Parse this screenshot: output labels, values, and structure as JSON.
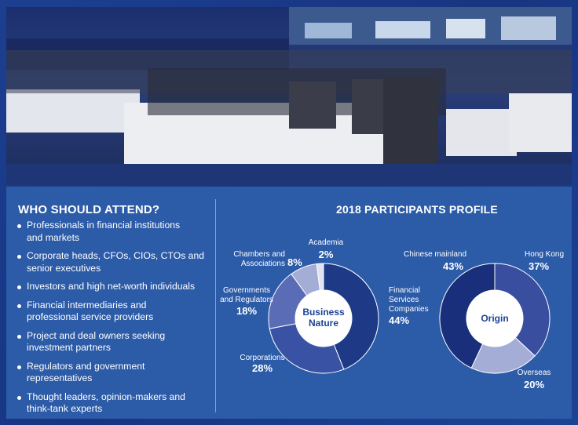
{
  "attend": {
    "title": "WHO SHOULD ATTEND?",
    "items": [
      [
        "Professionals in financial institutions",
        "and markets"
      ],
      [
        "Corporate heads, CFOs, CIOs, CTOs and",
        "senior executives"
      ],
      [
        "Investors and high net-worth individuals"
      ],
      [
        "Financial intermediaries and",
        "professional service providers"
      ],
      [
        "Project and deal owners seeking",
        "investment partners"
      ],
      [
        "Regulators and government",
        "representatives"
      ],
      [
        "Thought leaders, opinion-makers and",
        "think-tank experts"
      ]
    ]
  },
  "profile": {
    "title": "2018 PARTICIPANTS PROFILE",
    "business": {
      "center": [
        "Business",
        "Nature"
      ],
      "segments": [
        {
          "label": [
            "Financial",
            "Services",
            "Companies"
          ],
          "value": 44,
          "display": "44%",
          "color": "#1e3a86"
        },
        {
          "label": [
            "Corporations"
          ],
          "value": 28,
          "display": "28%",
          "color": "#3a52a3"
        },
        {
          "label": [
            "Governments",
            "and Regulators"
          ],
          "value": 18,
          "display": "18%",
          "color": "#5b6cb6"
        },
        {
          "label": [
            "Chambers and",
            "Associations"
          ],
          "value": 8,
          "display": "8%",
          "color": "#a4add6"
        },
        {
          "label": [
            "Academia"
          ],
          "value": 2,
          "display": "2%",
          "color": "#dfe3f1"
        }
      ]
    },
    "origin": {
      "center": [
        "Origin"
      ],
      "segments": [
        {
          "label": [
            "Hong Kong"
          ],
          "value": 37,
          "display": "37%",
          "color": "#3a4ea0"
        },
        {
          "label": [
            "Overseas"
          ],
          "value": 20,
          "display": "20%",
          "color": "#a4add6"
        },
        {
          "label": [
            "Chinese mainland"
          ],
          "value": 43,
          "display": "43%",
          "color": "#1a2f7c"
        }
      ]
    }
  }
}
